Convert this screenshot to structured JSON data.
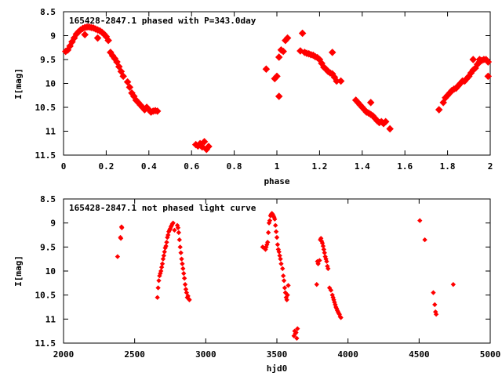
{
  "chart_data": [
    {
      "type": "scatter",
      "title": "165428-2847.1 phased with P=343.0day",
      "xlabel": "phase",
      "ylabel": "I[mag]",
      "xlim": [
        0,
        2
      ],
      "ylim": [
        8.5,
        11.5
      ],
      "y_inverted": true,
      "grid": false,
      "xticks": [
        "0",
        "0.2",
        "0.4",
        "0.6",
        "0.8",
        "1",
        "1.2",
        "1.4",
        "1.6",
        "1.8",
        "2"
      ],
      "yticks": [
        "8.5",
        "9",
        "9.5",
        "10",
        "10.5",
        "11",
        "11.5"
      ],
      "marker": "filled-diamond",
      "color": "#ff0000",
      "series": [
        {
          "x": [
            0.01,
            0.02,
            0.03,
            0.04,
            0.05,
            0.06,
            0.07,
            0.08,
            0.09,
            0.1,
            0.11,
            0.12,
            0.13,
            0.14,
            0.15,
            0.16,
            0.17,
            0.18,
            0.19,
            0.2,
            0.21,
            0.22,
            0.23,
            0.24,
            0.25,
            0.26,
            0.27,
            0.28,
            0.3,
            0.31,
            0.32,
            0.33,
            0.34,
            0.35,
            0.36,
            0.37,
            0.38,
            0.39,
            0.4,
            0.41,
            0.42,
            0.43,
            0.44,
            0.1,
            0.16,
            0.62,
            0.63,
            0.64,
            0.65,
            0.66,
            0.67,
            0.68,
            0.95,
            0.99,
            1.0,
            1.01,
            1.02,
            1.03,
            1.04,
            1.05,
            1.01,
            1.11,
            1.12,
            1.13,
            1.14,
            1.15,
            1.16,
            1.17,
            1.18,
            1.19,
            1.2,
            1.21,
            1.22,
            1.23,
            1.24,
            1.25,
            1.26,
            1.27,
            1.28,
            1.3,
            1.26,
            1.37,
            1.38,
            1.39,
            1.4,
            1.41,
            1.42,
            1.43,
            1.44,
            1.45,
            1.46,
            1.47,
            1.48,
            1.49,
            1.5,
            1.51,
            1.44,
            1.53,
            1.76,
            1.78,
            1.79,
            1.8,
            1.81,
            1.82,
            1.83,
            1.84,
            1.85,
            1.86,
            1.87,
            1.88,
            1.89,
            1.9,
            1.91,
            1.92,
            1.93,
            1.94,
            1.95,
            1.96,
            1.97,
            1.98,
            1.99,
            1.92,
            1.95,
            1.99
          ],
          "y": [
            9.33,
            9.3,
            9.22,
            9.13,
            9.05,
            8.97,
            8.92,
            8.88,
            8.85,
            8.83,
            8.82,
            8.82,
            8.83,
            8.84,
            8.86,
            8.88,
            8.9,
            8.93,
            8.97,
            9.02,
            9.1,
            9.35,
            9.42,
            9.48,
            9.55,
            9.65,
            9.75,
            9.85,
            9.97,
            10.08,
            10.2,
            10.27,
            10.35,
            10.4,
            10.45,
            10.5,
            10.55,
            10.5,
            10.55,
            10.6,
            10.58,
            10.57,
            10.58,
            8.98,
            9.05,
            11.28,
            11.31,
            11.26,
            11.33,
            11.22,
            11.38,
            11.32,
            9.7,
            9.9,
            9.85,
            9.45,
            9.3,
            9.33,
            9.1,
            9.05,
            10.27,
            9.32,
            8.95,
            9.35,
            9.37,
            9.38,
            9.4,
            9.41,
            9.44,
            9.46,
            9.5,
            9.58,
            9.66,
            9.7,
            9.75,
            9.78,
            9.8,
            9.87,
            9.95,
            9.95,
            9.35,
            10.35,
            10.4,
            10.45,
            10.5,
            10.55,
            10.6,
            10.62,
            10.65,
            10.68,
            10.73,
            10.78,
            10.82,
            10.8,
            10.84,
            10.8,
            10.4,
            10.95,
            10.55,
            10.4,
            10.3,
            10.25,
            10.2,
            10.15,
            10.12,
            10.1,
            10.05,
            10.0,
            9.95,
            9.95,
            9.9,
            9.85,
            9.78,
            9.72,
            9.68,
            9.6,
            9.55,
            9.52,
            9.5,
            9.5,
            9.55,
            9.5,
            9.5,
            9.85
          ]
        }
      ]
    },
    {
      "type": "scatter",
      "title": "165428-2847.1 not phased light curve",
      "xlabel": "hjd0",
      "ylabel": "I[mag]",
      "xlim": [
        2000,
        5000
      ],
      "ylim": [
        8.5,
        11.5
      ],
      "y_inverted": true,
      "grid": false,
      "xticks": [
        "2000",
        "2500",
        "3000",
        "3500",
        "4000",
        "4500",
        "5000"
      ],
      "yticks": [
        "8.5",
        "9",
        "9.5",
        "10",
        "10.5",
        "11",
        "11.5"
      ],
      "marker": "small-diamond",
      "color": "#ff0000",
      "series": [
        {
          "x": [
            2380,
            2400,
            2403,
            2408,
            2410,
            2660,
            2665,
            2670,
            2675,
            2680,
            2685,
            2690,
            2695,
            2700,
            2705,
            2710,
            2715,
            2720,
            2725,
            2730,
            2735,
            2740,
            2745,
            2750,
            2755,
            2760,
            2765,
            2770,
            2780,
            2800,
            2805,
            2810,
            2815,
            2820,
            2825,
            2830,
            2835,
            2840,
            2845,
            2850,
            2855,
            2860,
            2865,
            2870,
            2875,
            2880,
            2885,
            3400,
            3410,
            3420,
            3425,
            3430,
            3435,
            3440,
            3445,
            3450,
            3455,
            3460,
            3465,
            3470,
            3475,
            3480,
            3485,
            3490,
            3495,
            3500,
            3505,
            3510,
            3515,
            3520,
            3525,
            3530,
            3540,
            3545,
            3550,
            3555,
            3560,
            3565,
            3570,
            3575,
            3580,
            3620,
            3625,
            3630,
            3635,
            3640,
            3645,
            3780,
            3785,
            3790,
            3800,
            3805,
            3810,
            3815,
            3820,
            3825,
            3830,
            3835,
            3840,
            3845,
            3850,
            3855,
            3860,
            3870,
            3880,
            3890,
            3895,
            3900,
            3905,
            3910,
            3915,
            3920,
            3925,
            3930,
            3935,
            3940,
            3945,
            3950,
            4505,
            4540,
            4600,
            4610,
            4615,
            4620,
            4740
          ],
          "y": [
            9.7,
            9.3,
            9.32,
            9.08,
            9.1,
            10.55,
            10.35,
            10.2,
            10.1,
            10.05,
            10.0,
            9.92,
            9.85,
            9.75,
            9.68,
            9.6,
            9.52,
            9.48,
            9.4,
            9.3,
            9.25,
            9.18,
            9.15,
            9.12,
            9.08,
            9.05,
            9.02,
            9.0,
            9.15,
            9.05,
            9.1,
            9.2,
            9.35,
            9.5,
            9.62,
            9.75,
            9.85,
            9.95,
            10.05,
            10.15,
            10.28,
            10.38,
            10.45,
            10.55,
            10.52,
            10.58,
            10.6,
            9.5,
            9.52,
            9.55,
            9.5,
            9.45,
            9.4,
            9.2,
            9.0,
            8.95,
            8.85,
            8.82,
            8.8,
            8.82,
            8.85,
            8.88,
            8.92,
            9.05,
            9.18,
            9.3,
            9.45,
            9.55,
            9.6,
            9.68,
            9.75,
            9.85,
            9.95,
            10.1,
            10.2,
            10.35,
            10.45,
            10.55,
            10.6,
            10.5,
            10.3,
            11.35,
            11.25,
            11.3,
            11.28,
            11.4,
            11.2,
            10.28,
            9.8,
            9.85,
            9.78,
            9.35,
            9.32,
            9.38,
            9.42,
            9.48,
            9.55,
            9.62,
            9.7,
            9.75,
            9.8,
            9.9,
            9.95,
            10.35,
            10.4,
            10.5,
            10.55,
            10.6,
            10.65,
            10.7,
            10.75,
            10.78,
            10.82,
            10.85,
            10.88,
            10.9,
            10.95,
            10.97,
            8.95,
            9.35,
            10.45,
            10.7,
            10.85,
            10.9,
            10.28
          ]
        }
      ]
    }
  ]
}
